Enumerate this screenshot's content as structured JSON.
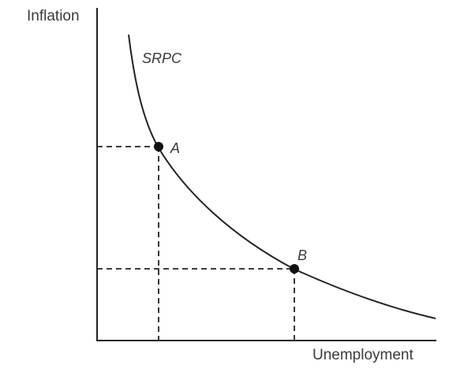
{
  "axes": {
    "y_label": "Inflation",
    "x_label": "Unemployment"
  },
  "curve": {
    "label": "SRPC"
  },
  "points": [
    {
      "id": "A",
      "label": "A"
    },
    {
      "id": "B",
      "label": "B"
    }
  ],
  "colors": {
    "ink": "#222222",
    "text": "#3a3a3a"
  }
}
